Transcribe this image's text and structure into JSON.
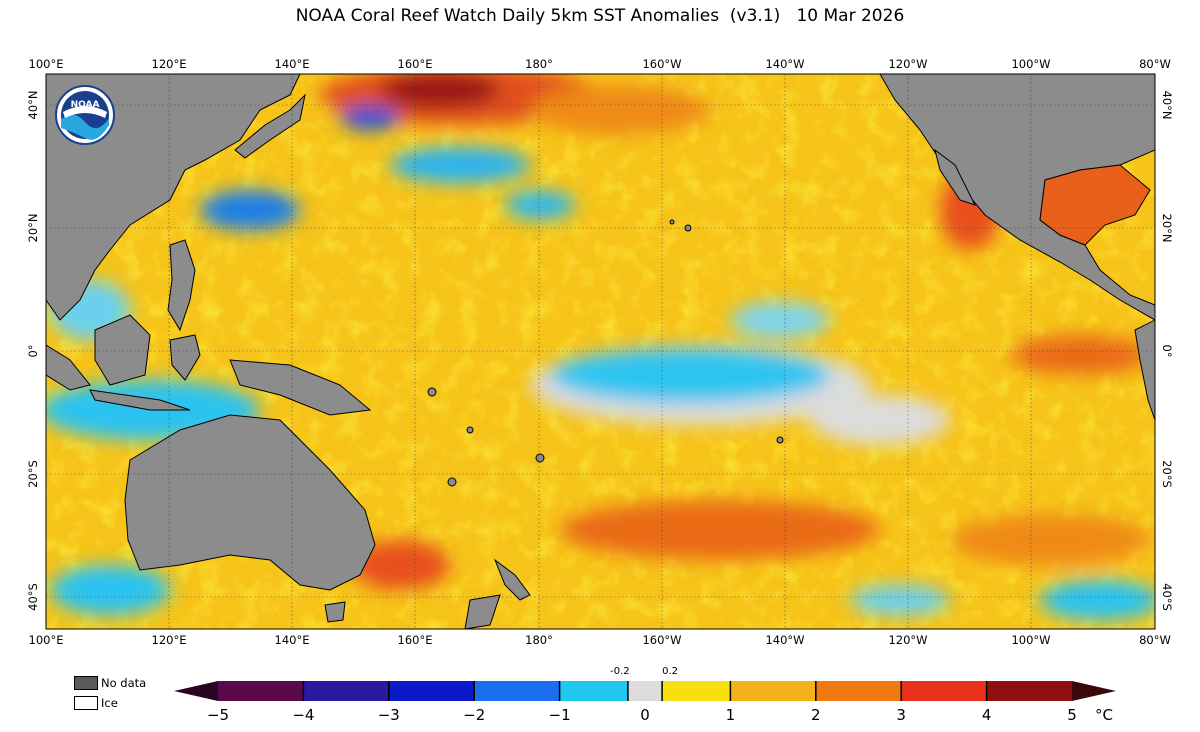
{
  "header": {
    "title": "NOAA Coral Reef Watch Daily 5km SST Anomalies  (v3.1)   10 Mar 2026"
  },
  "map": {
    "lon_labels": [
      "100°E",
      "120°E",
      "140°E",
      "160°E",
      "180°",
      "160°W",
      "140°W",
      "120°W",
      "100°W",
      "80°W"
    ],
    "lat_labels": [
      "40°N",
      "20°N",
      "0°",
      "20°S",
      "40°S"
    ],
    "colors": {
      "land": "#8c8c8c",
      "ocean_warm_base": "#f6c20e",
      "strong_warm": "#e8501a",
      "very_warm": "#b8141c",
      "neutral": "#dcdcdc",
      "cool": "#29c3f0",
      "cold": "#1a7fe8"
    }
  },
  "logo": {
    "text": "NOAA"
  },
  "legend": {
    "no_data_label": "No data",
    "ice_label": "Ice",
    "no_data_color": "#5a5a5a",
    "ice_color": "#ffffff"
  },
  "colorbar": {
    "ticks": [
      "−5",
      "−4",
      "−3",
      "−2",
      "−1",
      "0",
      "1",
      "2",
      "3",
      "4",
      "5"
    ],
    "small_ticks": [
      "-0.2",
      "0.2"
    ],
    "unit": "°C",
    "segments": [
      {
        "from": -5,
        "to": -4,
        "color": "#5a0a4a"
      },
      {
        "from": -4,
        "to": -3,
        "color": "#2a1aa0"
      },
      {
        "from": -3,
        "to": -2,
        "color": "#0a1ac8"
      },
      {
        "from": -2,
        "to": -1,
        "color": "#1a6ef0"
      },
      {
        "from": -1,
        "to": -0.2,
        "color": "#20c8f0"
      },
      {
        "from": -0.2,
        "to": 0.2,
        "color": "#dcdcdc"
      },
      {
        "from": 0.2,
        "to": 1,
        "color": "#f8e010"
      },
      {
        "from": 1,
        "to": 2,
        "color": "#f2b21a"
      },
      {
        "from": 2,
        "to": 3,
        "color": "#f07a10"
      },
      {
        "from": 3,
        "to": 4,
        "color": "#e8301a"
      },
      {
        "from": 4,
        "to": 5,
        "color": "#901010"
      }
    ]
  }
}
